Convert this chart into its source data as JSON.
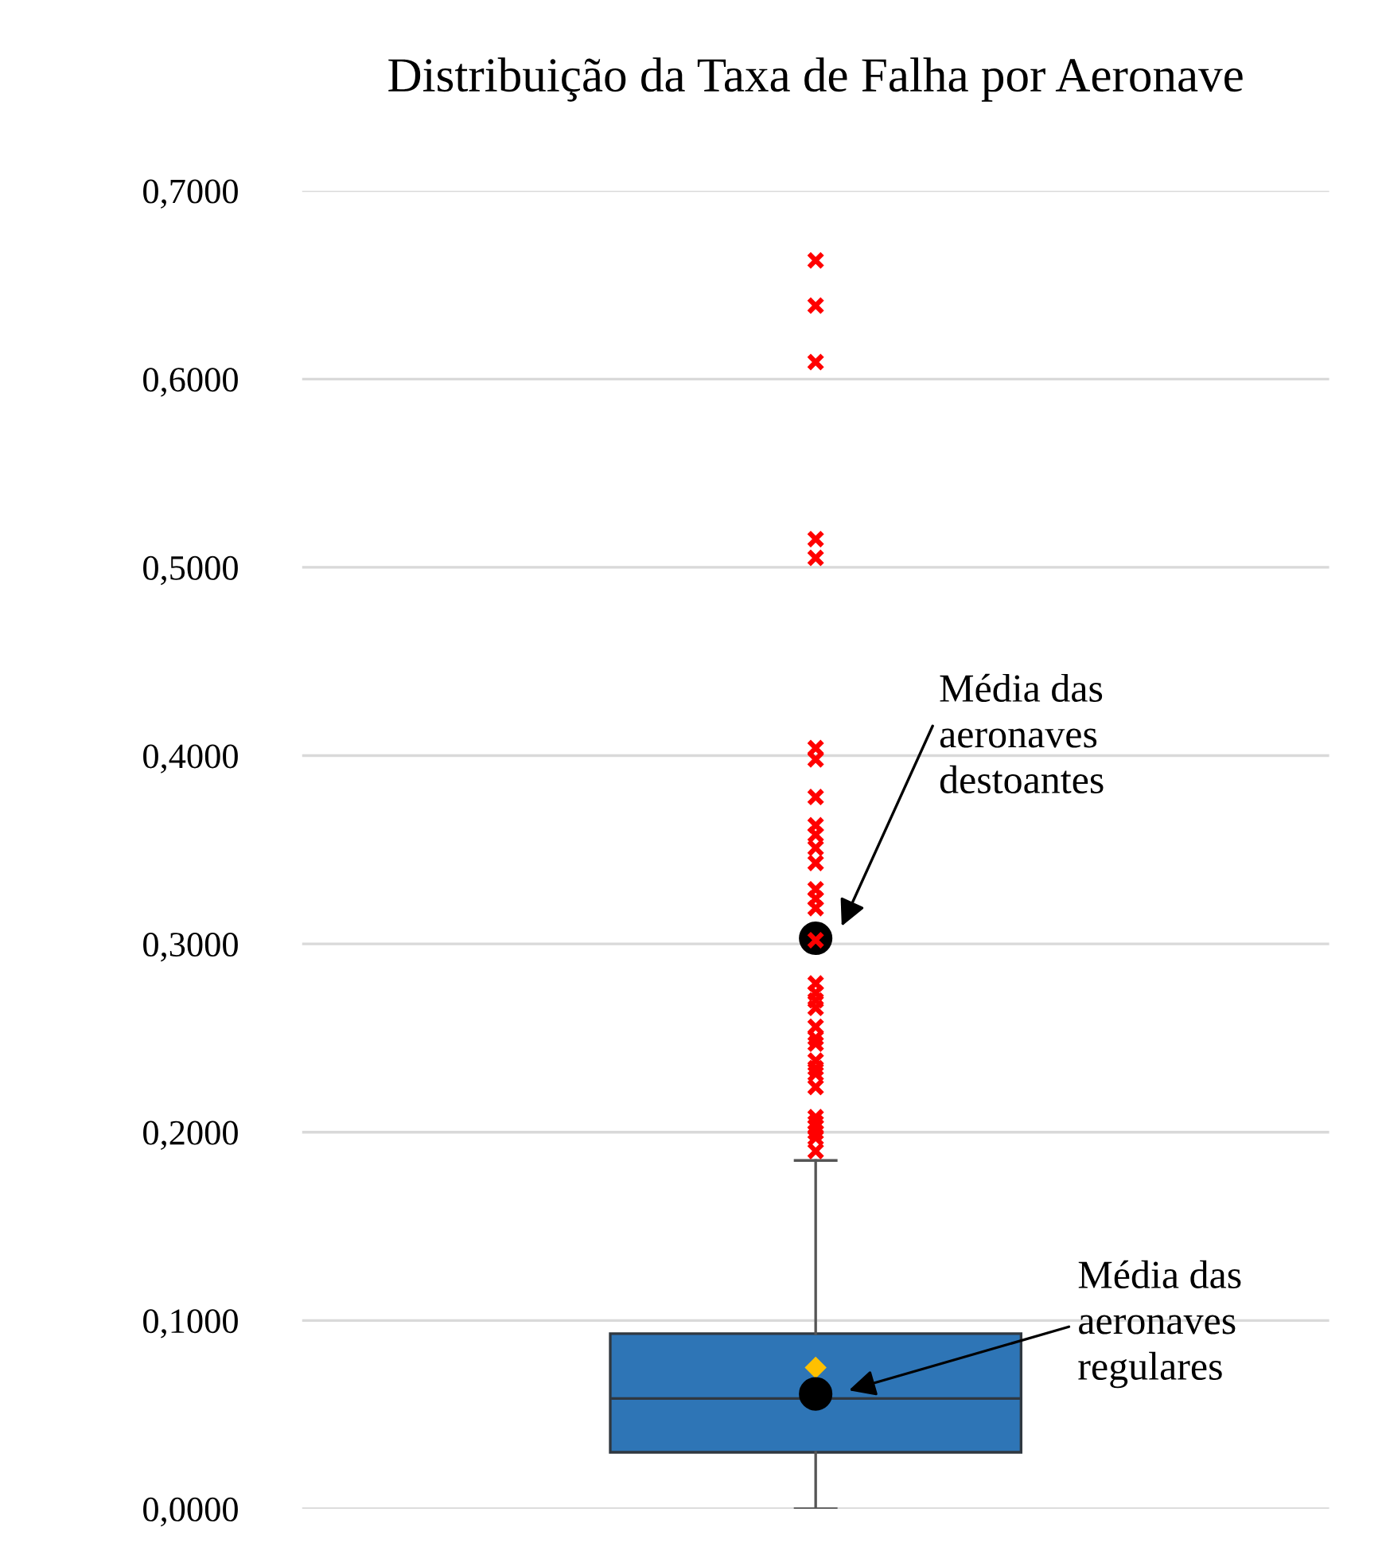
{
  "chart_data": {
    "type": "box",
    "title": "Distribuição da Taxa de Falha por Aeronave",
    "categories": [
      null
    ],
    "boxes": [
      {
        "low": 0.0,
        "q1": 0.03,
        "median": 0.0586,
        "q3": 0.093,
        "high": 0.185,
        "mean": 0.075,
        "outliers": [
          0.663,
          0.639,
          0.609,
          0.515,
          0.505,
          0.404,
          0.398,
          0.378,
          0.363,
          0.358,
          0.351,
          0.343,
          0.329,
          0.324,
          0.319,
          0.302,
          0.279,
          0.274,
          0.27,
          0.266,
          0.256,
          0.25,
          0.247,
          0.238,
          0.234,
          0.231,
          0.224,
          0.208,
          0.205,
          0.203,
          0.2,
          0.197,
          0.19
        ]
      }
    ],
    "color": "#2e75b6",
    "series": [
      {
        "type": "scatter",
        "color": "#000000",
        "marker": "circle",
        "values": [
          0.303
        ]
      },
      {
        "type": "scatter",
        "color": "#000000",
        "marker": "circle",
        "values": [
          0.061
        ]
      }
    ],
    "annotations": [
      "Média das\naeronaves\ndestoantes",
      "Média das\naeronaves\nregulares"
    ],
    "ylim": [
      0,
      0.7
    ],
    "yticks": [
      {
        "value": 0,
        "label": "0,0000"
      },
      {
        "value": 0.1,
        "label": "0,1000"
      },
      {
        "value": 0.2,
        "label": "0,2000"
      },
      {
        "value": 0.3,
        "label": "0,3000"
      },
      {
        "value": 0.4,
        "label": "0,4000"
      },
      {
        "value": 0.5,
        "label": "0,5000"
      },
      {
        "value": 0.6,
        "label": "0,6000"
      },
      {
        "value": 0.7,
        "label": "0,7000"
      }
    ],
    "grid": "y",
    "tick_labels": "y"
  }
}
